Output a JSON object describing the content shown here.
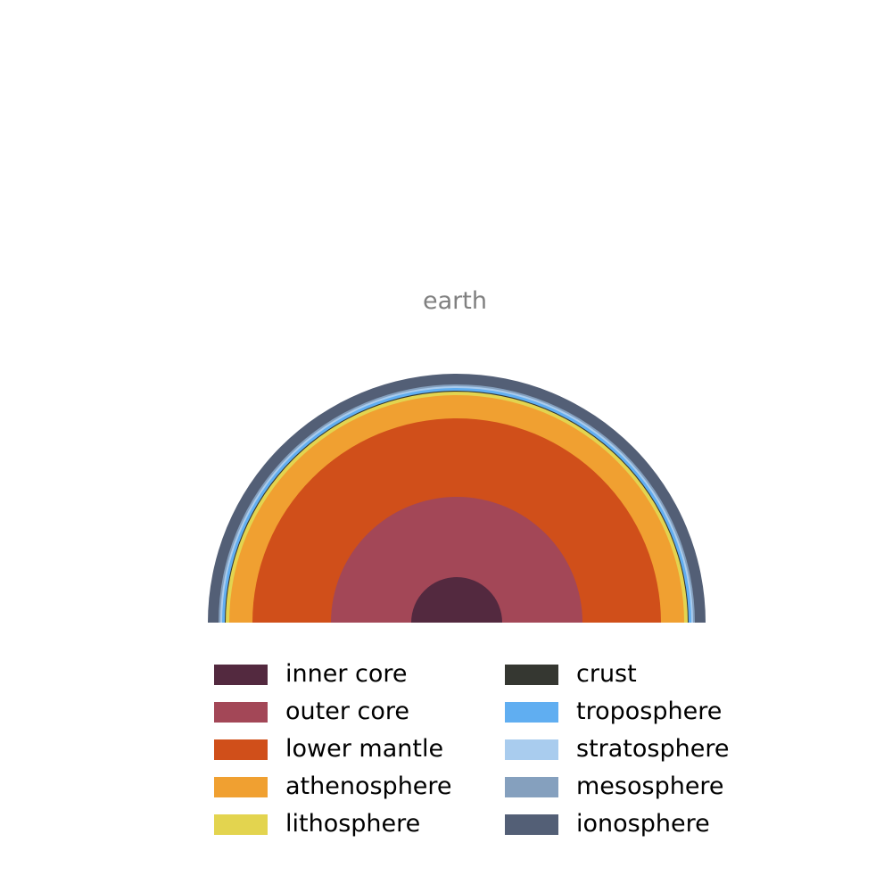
{
  "title": "earth",
  "layers": [
    {
      "name": "inner core",
      "color": "#53293f"
    },
    {
      "name": "outer core",
      "color": "#a34757"
    },
    {
      "name": "lower mantle",
      "color": "#d04f1a"
    },
    {
      "name": "athenosphere",
      "color": "#f0a031"
    },
    {
      "name": "lithosphere",
      "color": "#e3d44f"
    },
    {
      "name": "crust",
      "color": "#353731"
    },
    {
      "name": "troposphere",
      "color": "#60aef1"
    },
    {
      "name": "stratosphere",
      "color": "#a9ccee"
    },
    {
      "name": "mesosphere",
      "color": "#85a0be"
    },
    {
      "name": "ionosphere",
      "color": "#535f76"
    }
  ],
  "legend": {
    "left": [
      {
        "label": "inner core",
        "color": "#53293f"
      },
      {
        "label": "outer core",
        "color": "#a34757"
      },
      {
        "label": "lower mantle",
        "color": "#d04f1a"
      },
      {
        "label": "athenosphere",
        "color": "#f0a031"
      },
      {
        "label": "lithosphere",
        "color": "#e3d44f"
      }
    ],
    "right": [
      {
        "label": "crust",
        "color": "#353731"
      },
      {
        "label": "troposphere",
        "color": "#60aef1"
      },
      {
        "label": "stratosphere",
        "color": "#a9ccee"
      },
      {
        "label": "mesosphere",
        "color": "#85a0be"
      },
      {
        "label": "ionosphere",
        "color": "#535f76"
      }
    ]
  }
}
